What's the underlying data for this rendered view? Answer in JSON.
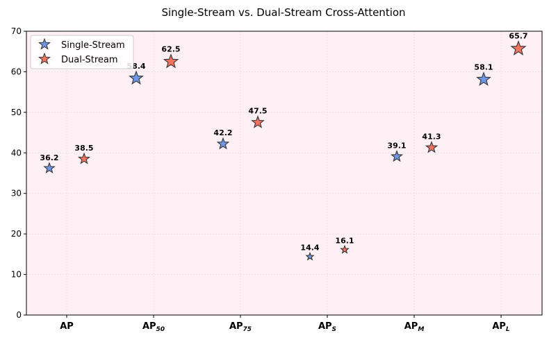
{
  "chart_data": {
    "type": "scatter",
    "title": "Single-Stream vs. Dual-Stream Cross-Attention",
    "xlabel": "",
    "ylabel": "",
    "categories": [
      {
        "main": "AP",
        "sub": ""
      },
      {
        "main": "AP",
        "sub": "50"
      },
      {
        "main": "AP",
        "sub": "75"
      },
      {
        "main": "AP",
        "sub": "S"
      },
      {
        "main": "AP",
        "sub": "M"
      },
      {
        "main": "AP",
        "sub": "L"
      }
    ],
    "series": [
      {
        "name": "Single-Stream",
        "color": "#6f95e3",
        "marker": "star",
        "values": [
          36.2,
          58.4,
          42.2,
          14.4,
          39.1,
          58.1
        ]
      },
      {
        "name": "Dual-Stream",
        "color": "#f07460",
        "marker": "star",
        "values": [
          38.5,
          62.5,
          47.5,
          16.1,
          41.3,
          65.7
        ]
      }
    ],
    "data_labels": [
      [
        "36.2",
        "58.4",
        "42.2",
        "14.4",
        "39.1",
        "58.1"
      ],
      [
        "38.5",
        "62.5",
        "47.5",
        "16.1",
        "41.3",
        "65.7"
      ]
    ],
    "ylim": [
      0,
      70
    ],
    "yticks": [
      "0",
      "10",
      "20",
      "30",
      "40",
      "50",
      "60",
      "70"
    ],
    "grid": true,
    "legend_position": "top-left",
    "plot_background": "#fff0f5"
  }
}
